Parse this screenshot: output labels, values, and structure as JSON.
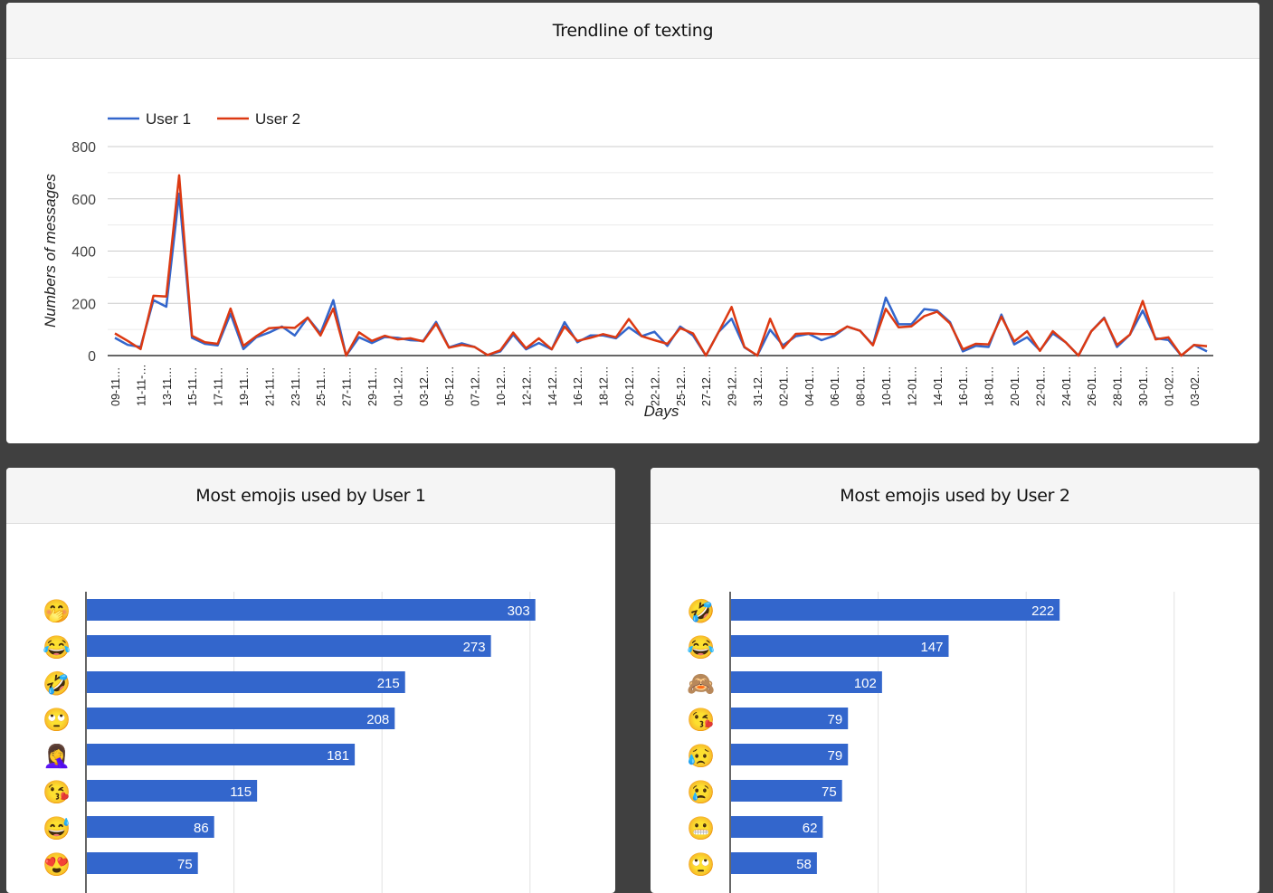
{
  "colors": {
    "user1": "#3366cc",
    "user2": "#dc3912",
    "bar": "#3366cc",
    "background": "#404040"
  },
  "chart_data": [
    {
      "type": "line",
      "title": "Trendline of texting",
      "xlabel": "Days",
      "ylabel": "Numbers of messages",
      "ylim": [
        0,
        800
      ],
      "yticks": [
        "0",
        "200",
        "400",
        "600",
        "800"
      ],
      "legend_position": "top-left",
      "x_tick_labels": [
        "09-11…",
        "11-11-…",
        "13-11…",
        "15-11…",
        "17-11…",
        "19-11…",
        "21-11…",
        "23-11…",
        "25-11…",
        "27-11…",
        "29-11…",
        "01-12…",
        "03-12…",
        "05-12…",
        "07-12…",
        "10-12…",
        "12-12…",
        "14-12…",
        "16-12…",
        "18-12…",
        "20-12…",
        "22-12…",
        "25-12…",
        "27-12…",
        "29-12…",
        "31-12…",
        "02-01…",
        "04-01…",
        "06-01…",
        "08-01…",
        "10-01…",
        "12-01…",
        "14-01…",
        "16-01…",
        "18-01…",
        "20-01…",
        "22-01…",
        "24-01…",
        "26-01…",
        "28-01…",
        "30-01…",
        "01-02…",
        "03-02…"
      ],
      "series": [
        {
          "name": "User 1",
          "values": [
            68,
            41,
            33,
            212,
            187,
            620,
            68,
            45,
            39,
            160,
            25,
            70,
            88,
            111,
            77,
            145,
            85,
            212,
            0,
            70,
            48,
            71,
            68,
            59,
            56,
            129,
            31,
            47,
            33,
            2,
            16,
            80,
            24,
            48,
            24,
            128,
            51,
            77,
            77,
            66,
            108,
            74,
            91,
            37,
            111,
            77,
            0,
            91,
            141,
            31,
            0,
            99,
            39,
            74,
            83,
            59,
            76,
            111,
            95,
            41,
            222,
            120,
            120,
            178,
            172,
            128,
            16,
            37,
            33,
            157,
            43,
            70,
            20,
            85,
            51,
            0,
            93,
            145,
            33,
            80,
            172,
            66,
            60,
            0,
            41,
            16
          ]
        },
        {
          "name": "User 2",
          "values": [
            85,
            56,
            25,
            229,
            226,
            690,
            76,
            51,
            45,
            180,
            37,
            74,
            105,
            108,
            106,
            145,
            77,
            180,
            0,
            89,
            56,
            76,
            62,
            66,
            54,
            122,
            30,
            41,
            33,
            2,
            20,
            88,
            28,
            66,
            24,
            111,
            56,
            68,
            82,
            70,
            140,
            74,
            59,
            45,
            105,
            85,
            0,
            91,
            186,
            33,
            0,
            141,
            28,
            83,
            85,
            82,
            82,
            111,
            95,
            39,
            179,
            108,
            112,
            151,
            168,
            123,
            24,
            45,
            43,
            149,
            54,
            93,
            18,
            93,
            51,
            0,
            93,
            143,
            41,
            80,
            209,
            62,
            70,
            0,
            41,
            36
          ]
        }
      ]
    },
    {
      "type": "bar",
      "title": "Most emojis used by User 1",
      "categories": [
        "🤭",
        "😂",
        "🤣",
        "🙄",
        "🤦‍♀️",
        "😘",
        "😅",
        "😍"
      ],
      "values": [
        303,
        273,
        215,
        208,
        181,
        115,
        86,
        75
      ],
      "gridlines": [
        0,
        100,
        200,
        300
      ]
    },
    {
      "type": "bar",
      "title": "Most emojis used by User 2",
      "categories": [
        "🤣",
        "😂",
        "🙈",
        "😘",
        "😥",
        "😢",
        "😬",
        "🙄"
      ],
      "values": [
        222,
        147,
        102,
        79,
        79,
        75,
        62,
        58
      ],
      "gridlines": [
        0,
        100,
        200,
        300
      ]
    }
  ]
}
